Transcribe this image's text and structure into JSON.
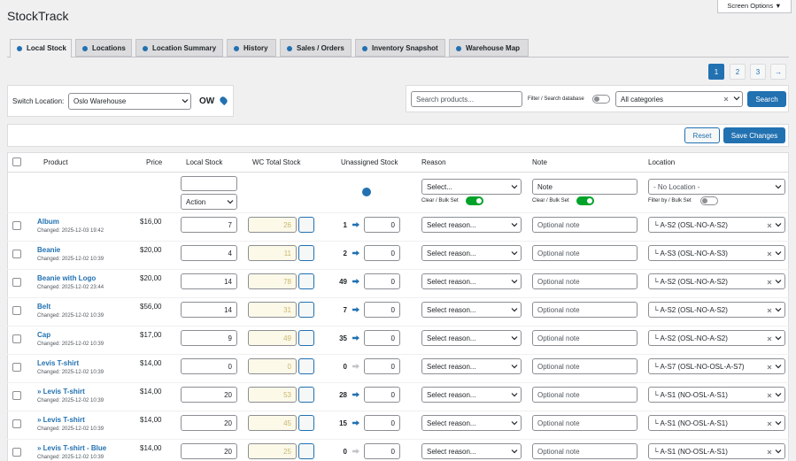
{
  "header": {
    "title": "StockTrack",
    "screen_options": "Screen Options ▼"
  },
  "tabs": [
    "Local Stock",
    "Locations",
    "Location Summary",
    "History",
    "Sales / Orders",
    "Inventory Snapshot",
    "Warehouse Map"
  ],
  "pagination": [
    "1",
    "2",
    "3",
    "→"
  ],
  "location_switch": {
    "label": "Switch Location:",
    "selected": "Oslo Warehouse",
    "code": "OW"
  },
  "search": {
    "placeholder": "Search products...",
    "filter_label": "Filter / Search database",
    "category": "All categories",
    "button": "Search"
  },
  "actions": {
    "reset": "Reset",
    "save": "Save Changes"
  },
  "columns": [
    "Product",
    "Price",
    "Local Stock",
    "WC Total Stock",
    "Unassigned Stock",
    "Reason",
    "Note",
    "Location"
  ],
  "filters": {
    "action": "Action",
    "reason": "Select...",
    "reason_toggle": "Clear / Bulk Set",
    "note": "Note",
    "note_toggle": "Clear / Bulk Set",
    "location": "- No Location -",
    "location_toggle": "Filter by / Bulk Set"
  },
  "rows": [
    [
      "Album",
      "Changed: 2025-12-03 19:42",
      "$16,00",
      "7",
      "26",
      "1",
      "0",
      "Select reason...",
      "Optional note",
      "└ A-S2 (OSL-NO-A-S2)"
    ],
    [
      "Beanie",
      "Changed: 2025-12-02 10:39",
      "$20,00",
      "4",
      "11",
      "2",
      "0",
      "Select reason...",
      "Optional note",
      "└ A-S3 (OSL-NO-A-S3)"
    ],
    [
      "Beanie with Logo",
      "Changed: 2025-12-02 23:44",
      "$20,00",
      "14",
      "78",
      "49",
      "0",
      "Select reason...",
      "Optional note",
      "└ A-S2 (OSL-NO-A-S2)"
    ],
    [
      "Belt",
      "Changed: 2025-12-02 10:39",
      "$56,00",
      "14",
      "31",
      "7",
      "0",
      "Select reason...",
      "Optional note",
      "└ A-S2 (OSL-NO-A-S2)"
    ],
    [
      "Cap",
      "Changed: 2025-12-02 10:39",
      "$17,00",
      "9",
      "49",
      "35",
      "0",
      "Select reason...",
      "Optional note",
      "└ A-S2 (OSL-NO-A-S2)"
    ],
    [
      "Levis T-shirt",
      "Changed: 2025-12-02 10:39",
      "$14,00",
      "0",
      "0",
      "0",
      "0",
      "Select reason...",
      "Optional note",
      "└ A-S7 (OSL-NO-OSL-A-S7)"
    ],
    [
      "» Levis T-shirt",
      "Changed: 2025-12-02 10:39",
      "$14,00",
      "20",
      "53",
      "28",
      "0",
      "Select reason...",
      "Optional note",
      "└ A-S1 (NO-OSL-A-S1)"
    ],
    [
      "» Levis T-shirt",
      "Changed: 2025-12-02 10:39",
      "$14,00",
      "20",
      "45",
      "15",
      "0",
      "Select reason...",
      "Optional note",
      "└ A-S1 (NO-OSL-A-S1)"
    ],
    [
      "» Levis T-shirt - Blue",
      "Changed: 2025-12-02 10:39",
      "$14,00",
      "20",
      "25",
      "0",
      "0",
      "Select reason...",
      "Optional note",
      "└ A-S1 (NO-OSL-A-S1)"
    ]
  ]
}
